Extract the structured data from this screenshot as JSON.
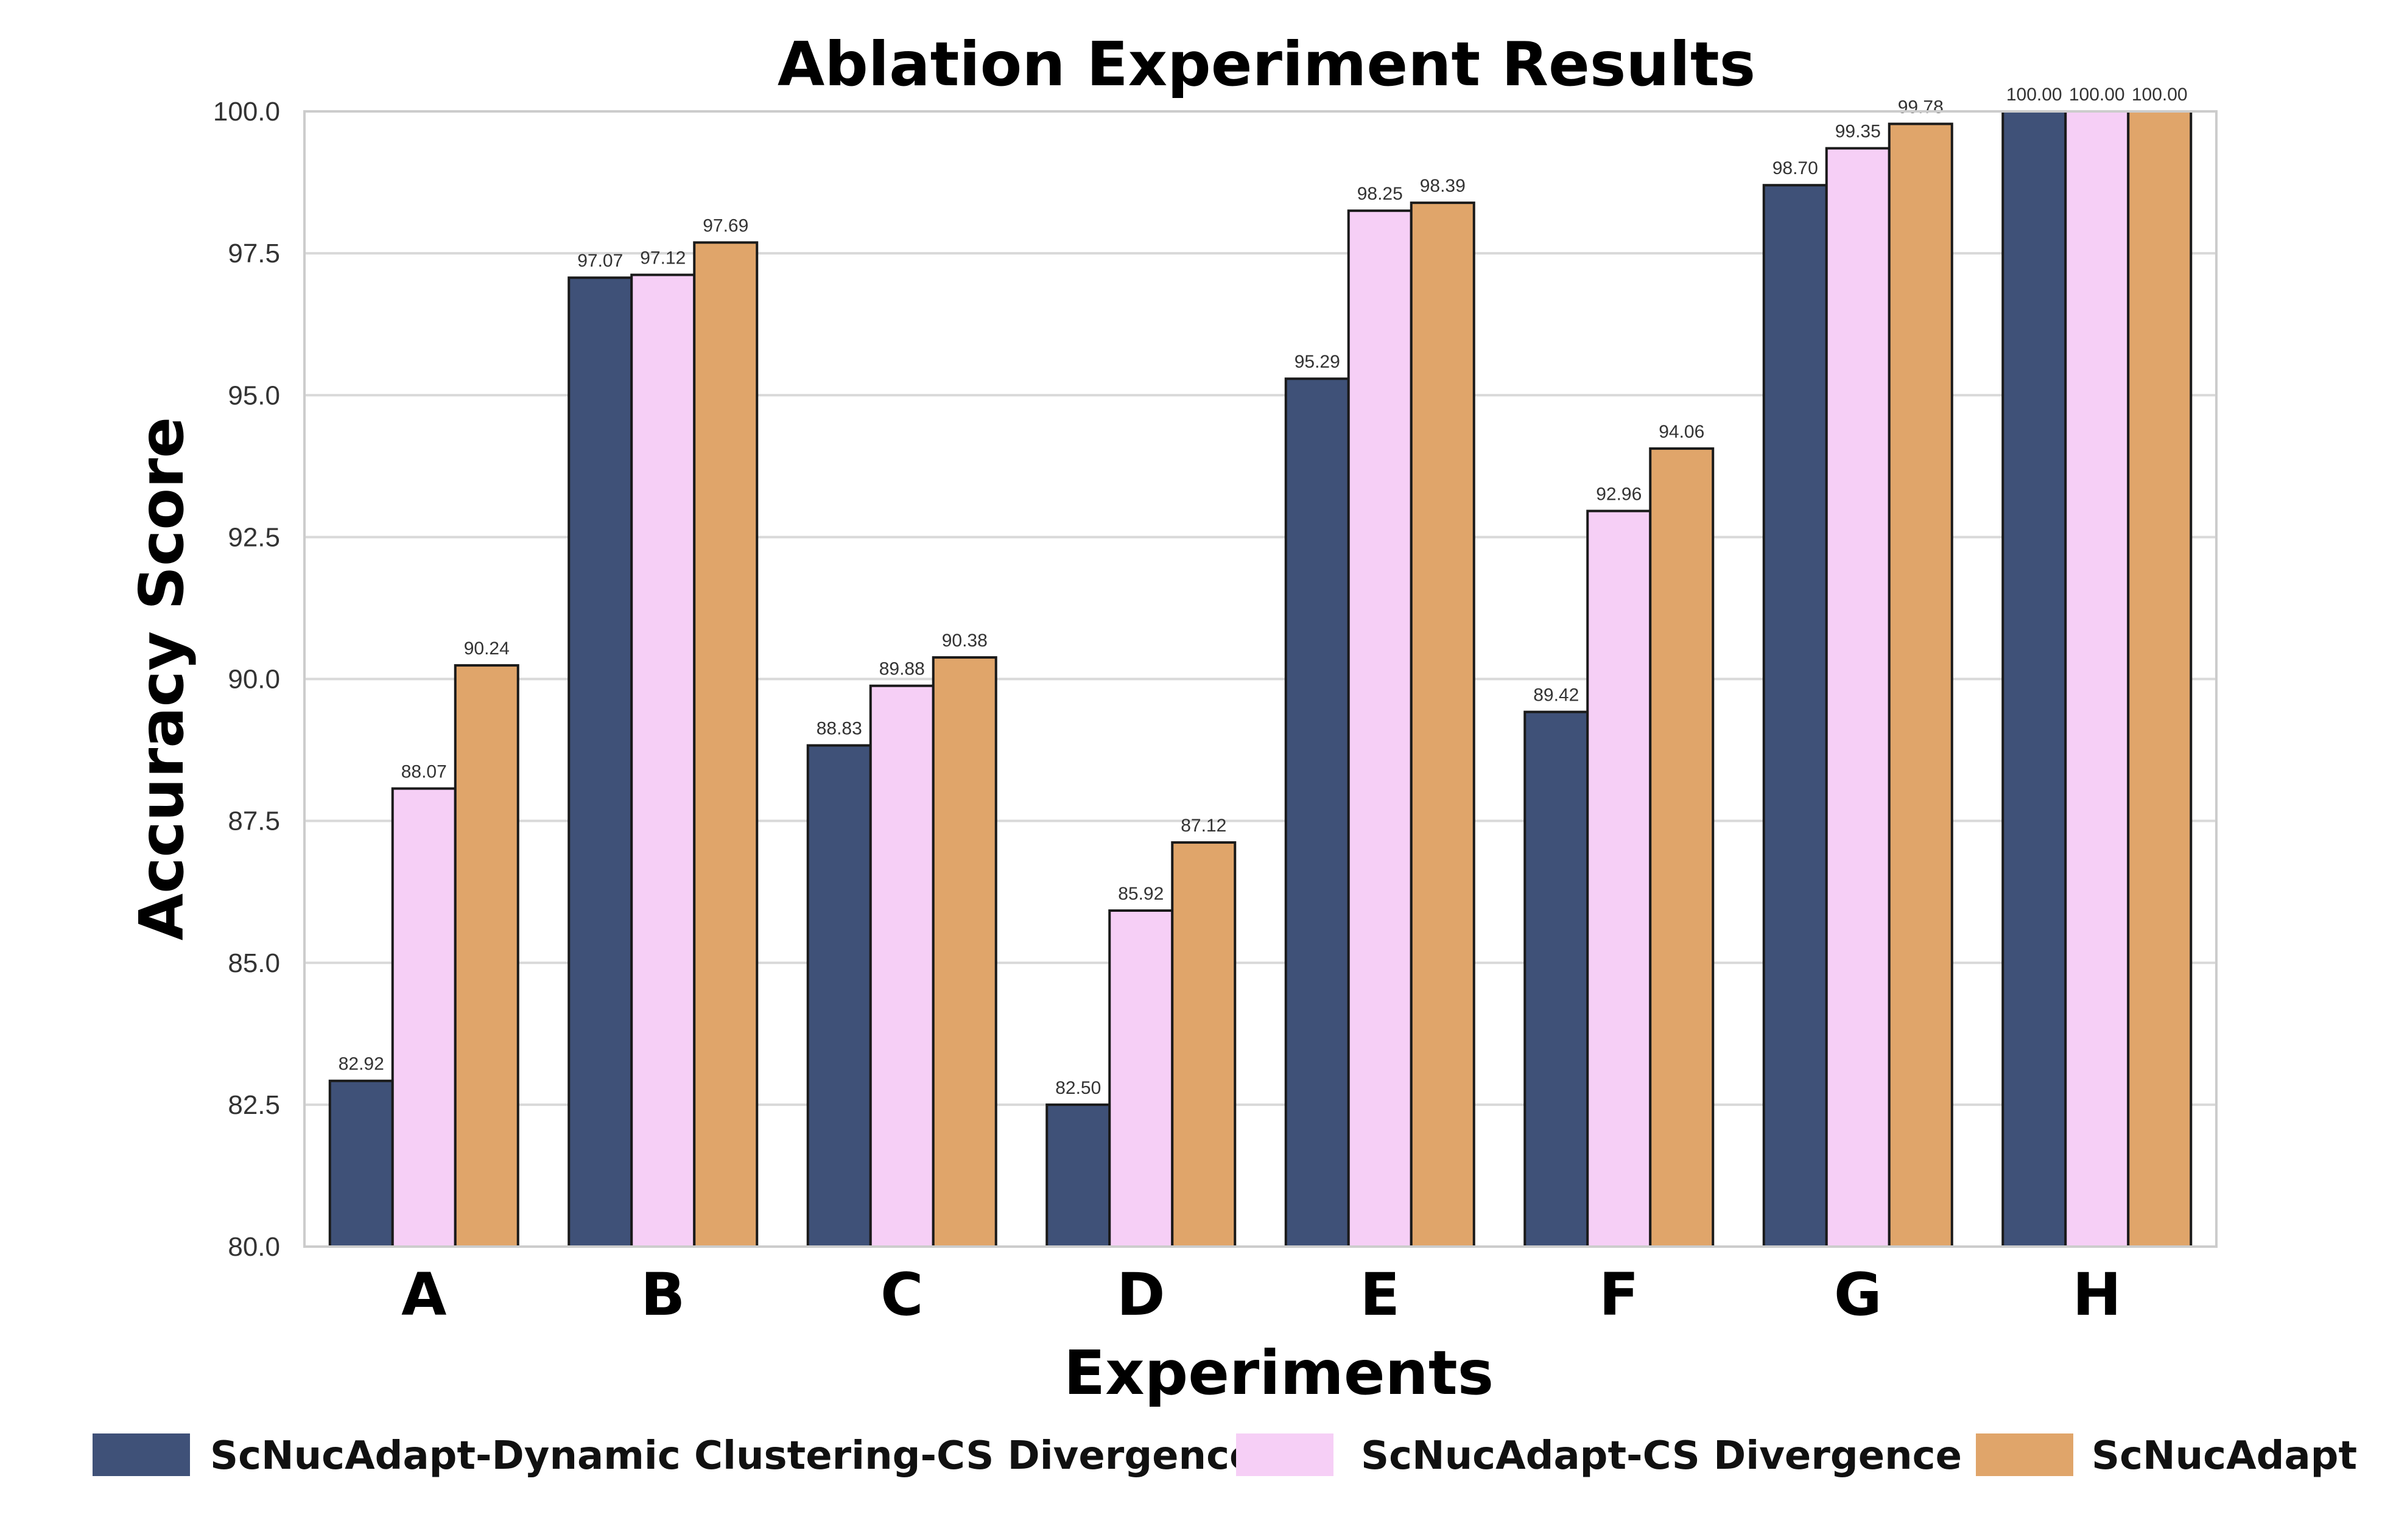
{
  "chart_data": {
    "type": "bar",
    "title": "Ablation Experiment Results",
    "xlabel": "Experiments",
    "ylabel": "Accuracy Score",
    "ylim": [
      80.0,
      100.0
    ],
    "yticks": [
      "80.0",
      "82.5",
      "85.0",
      "87.5",
      "90.0",
      "92.5",
      "95.0",
      "97.5",
      "100.0"
    ],
    "categories": [
      "A",
      "B",
      "C",
      "D",
      "E",
      "F",
      "G",
      "H"
    ],
    "grid": true,
    "legend_position": "bottom",
    "series": [
      {
        "name": "ScNucAdapt-Dynamic Clustering-CS Divergence",
        "color": "#3f5178",
        "values": [
          82.92,
          97.07,
          88.83,
          82.5,
          95.29,
          89.42,
          98.7,
          100.0
        ],
        "labels": [
          "82.92",
          "97.07",
          "88.83",
          "82.50",
          "95.29",
          "89.42",
          "98.70",
          "100.00"
        ]
      },
      {
        "name": "ScNucAdapt-CS Divergence",
        "color": "#f6cff6",
        "values": [
          88.07,
          97.12,
          89.88,
          85.92,
          98.25,
          92.96,
          99.35,
          100.0
        ],
        "labels": [
          "88.07",
          "97.12",
          "89.88",
          "85.92",
          "98.25",
          "92.96",
          "99.35",
          "100.00"
        ]
      },
      {
        "name": "ScNucAdapt",
        "color": "#e0a56a",
        "values": [
          90.24,
          97.69,
          90.38,
          87.12,
          98.39,
          94.06,
          99.78,
          100.0
        ],
        "labels": [
          "90.24",
          "97.69",
          "90.38",
          "87.12",
          "98.39",
          "94.06",
          "99.78",
          "100.00"
        ]
      }
    ]
  }
}
